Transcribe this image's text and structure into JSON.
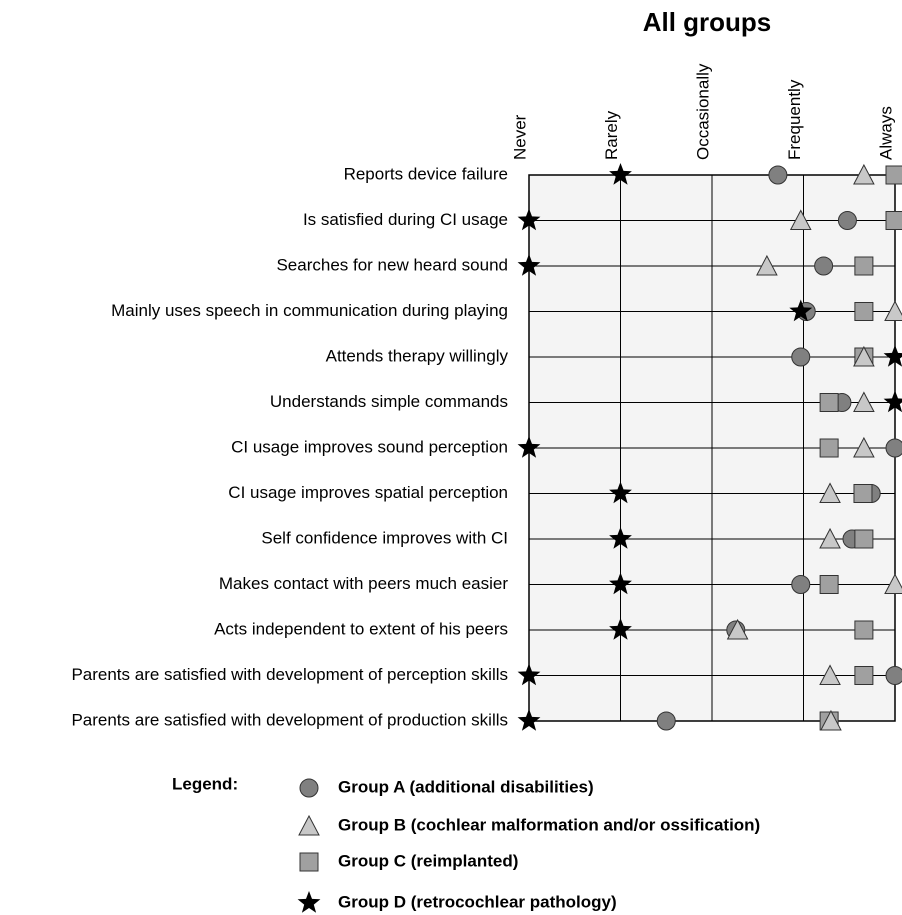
{
  "chart_data": {
    "type": "dot",
    "title": "All groups",
    "categories": [
      "Reports device failure",
      "Is satisfied during CI usage",
      "Searches for new heard sound",
      "Mainly uses speech in communication during playing",
      "Attends therapy willingly",
      "Understands simple commands",
      "CI usage improves sound perception",
      "CI usage improves spatial perception",
      "Self confidence improves with CI",
      "Makes contact with peers much easier",
      "Acts independent to extent of his peers",
      "Parents are satisfied with development of perception skills",
      "Parents are satisfied with development of production skills"
    ],
    "xlim": [
      0,
      4
    ],
    "xticks": [
      {
        "value": 0,
        "label": "Never"
      },
      {
        "value": 1,
        "label": "Rarely"
      },
      {
        "value": 2,
        "label": "Occasionally"
      },
      {
        "value": 3,
        "label": "Frequently"
      },
      {
        "value": 4,
        "label": "Always"
      }
    ],
    "grid": true,
    "legend_title": "Legend:",
    "series": [
      {
        "name": "Group A (additional disabilities)",
        "color": "#808080",
        "marker": "circle",
        "values": [
          2.72,
          3.48,
          3.22,
          3.03,
          2.97,
          3.42,
          4,
          3.74,
          3.53,
          2.97,
          2.26,
          4,
          1.5
        ]
      },
      {
        "name": "Group B (cochlear malformation and/or ossification)",
        "color": "#c8c8c8",
        "marker": "triangle",
        "values": [
          3.66,
          2.97,
          2.6,
          4,
          3.66,
          3.66,
          3.66,
          3.29,
          3.29,
          4,
          2.28,
          3.29,
          3.3
        ]
      },
      {
        "name": "Group C (reimplanted)",
        "color": "#a0a0a0",
        "marker": "square",
        "values": [
          4,
          4,
          3.66,
          3.66,
          3.66,
          3.28,
          3.28,
          3.65,
          3.66,
          3.28,
          3.66,
          3.66,
          3.28
        ]
      },
      {
        "name": "Group D (retrocochlear pathology)",
        "color": "#000000",
        "marker": "star",
        "values": [
          1,
          0,
          0,
          2.97,
          4,
          4,
          0,
          1,
          1,
          1,
          1,
          0,
          0
        ]
      }
    ]
  }
}
